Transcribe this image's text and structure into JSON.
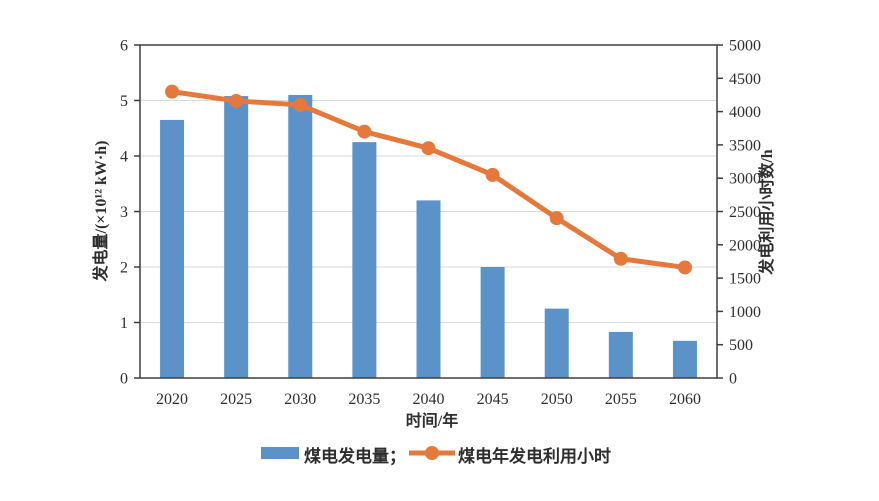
{
  "page": {
    "background": "#ffffff"
  },
  "chart_data": {
    "type": "combo",
    "title": "",
    "categories": [
      "2020",
      "2025",
      "2030",
      "2035",
      "2040",
      "2045",
      "2050",
      "2055",
      "2060"
    ],
    "series": [
      {
        "name": "煤电发电量",
        "type": "bar",
        "axis": "left",
        "color": "#5b93c9",
        "values": [
          4.65,
          5.08,
          5.1,
          4.25,
          3.2,
          2.0,
          1.25,
          0.83,
          0.67
        ]
      },
      {
        "name": "煤电年发电利用小时",
        "type": "line",
        "axis": "right",
        "color": "#e5793c",
        "marker": "circle",
        "values": [
          4300,
          4160,
          4100,
          3700,
          3450,
          3050,
          2400,
          1790,
          1660
        ]
      }
    ],
    "xlabel": "时间/年",
    "left_axis": {
      "label": "发电量/(×10¹² kW·h)",
      "min": 0,
      "max": 6,
      "ticks": [
        0,
        1,
        2,
        3,
        4,
        5,
        6
      ]
    },
    "right_axis": {
      "label": "发电利用小时数/h",
      "min": 0,
      "max": 5000,
      "ticks": [
        0,
        500,
        1000,
        1500,
        2000,
        2500,
        3000,
        3500,
        4000,
        4500,
        5000
      ]
    },
    "legend": {
      "position": "bottom",
      "entries": [
        {
          "label": "煤电发电量；",
          "swatch": "bar",
          "color": "#5b93c9"
        },
        {
          "label": "煤电年发电利用小时",
          "swatch": "line-marker",
          "color": "#e5793c"
        }
      ]
    },
    "grid": {
      "horizontal": true,
      "vertical": false,
      "color": "#d9d9d9"
    },
    "axis_color": "#3f3f3f",
    "text_color": "#2e2e2e"
  }
}
